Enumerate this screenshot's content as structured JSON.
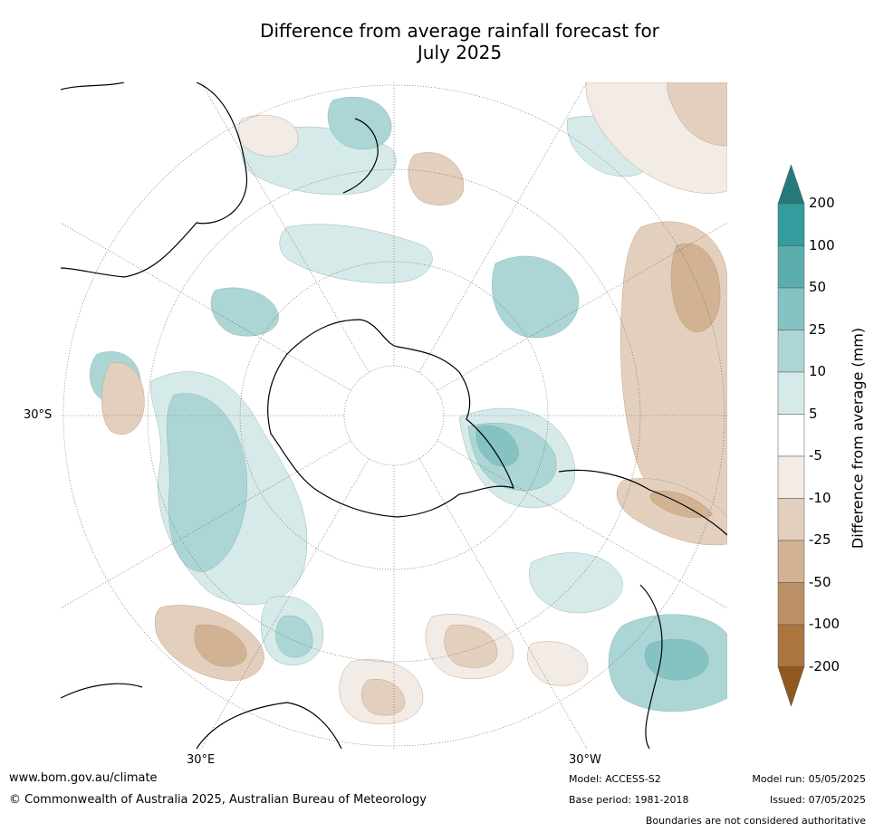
{
  "title_line1": "Difference from average rainfall forecast for",
  "title_line2": "July 2025",
  "map": {
    "projection": "south-polar-stereographic",
    "lat_label": "30°S",
    "lon_labels": [
      "30°E",
      "30°W"
    ],
    "ocean_color": "#ffffff",
    "coast_color": "#000000"
  },
  "colorbar": {
    "label": "Difference from average (mm)",
    "ticks": [
      "200",
      "100",
      "50",
      "25",
      "10",
      "5",
      "-5",
      "-10",
      "-25",
      "-50",
      "-100",
      "-200"
    ],
    "colors": [
      "#267a7a",
      "#339c9c",
      "#5caeae",
      "#85c3c2",
      "#acd6d5",
      "#d6eae9",
      "#ffffff",
      "#f3ebe5",
      "#e3cfbd",
      "#d1b293",
      "#bd9066",
      "#ab753f",
      "#8f5820"
    ]
  },
  "footer": {
    "website": "www.bom.gov.au/climate",
    "copyright": "© Commonwealth of Australia 2025, Australian Bureau of Meteorology",
    "model": "Model: ACCESS-S2",
    "base_period": "Base period: 1981-2018",
    "model_run": "Model run: 05/05/2025",
    "issued": "Issued: 07/05/2025",
    "disclaimer": "Boundaries are not considered authoritative"
  }
}
